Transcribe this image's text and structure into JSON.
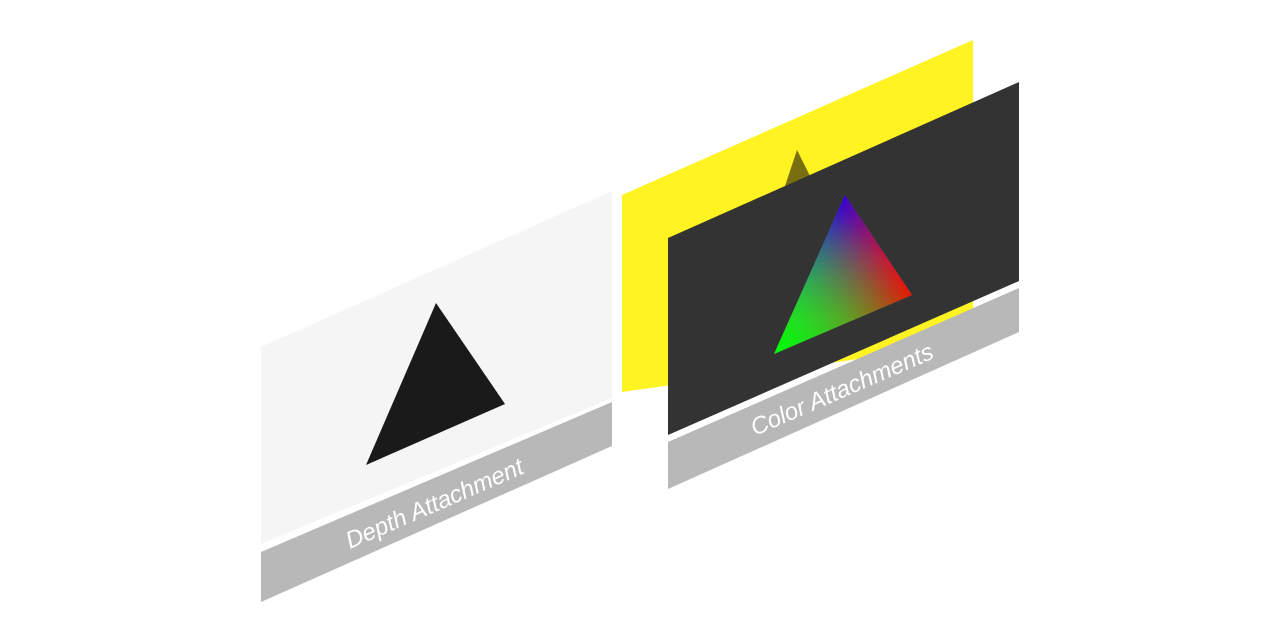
{
  "depth_attachment": {
    "label": "Depth Attachment",
    "panel_color": "#F5F5F5",
    "triangle_color": "#1A1A1A",
    "label_band_color": "#B8B8B8"
  },
  "color_attachments": {
    "label": "Color Attachments",
    "back_panel_color": "#FFF321",
    "back_triangle_color": "#7A6F10",
    "front_panel_color": "#333333",
    "label_band_color": "#B8B8B8",
    "gradient_colors": {
      "top": "#0000FF",
      "right": "#FF0000",
      "left": "#00FF00"
    }
  }
}
